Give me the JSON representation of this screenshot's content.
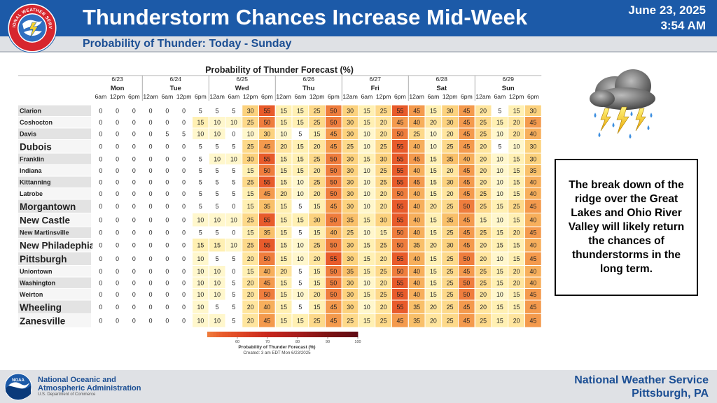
{
  "header": {
    "title": "Thunderstorm Chances Increase Mid-Week",
    "date": "June 23, 2025",
    "time": "3:54 AM",
    "subtitle": "Probability of Thunder: Today - Sunday",
    "logo_text": "NATIONAL WEATHER SERVICE",
    "brand_color": "#1c5aa8"
  },
  "note": {
    "text": "The break down of the ridge over the Great Lakes and Ohio River Valley will likely return the chances of thunderstorms in the long term."
  },
  "footer": {
    "agency_line1": "National Oceanic and",
    "agency_line2": "Atmospheric Administration",
    "department": "U.S. Department of Commerce",
    "office_line1": "National Weather Service",
    "office_line2": "Pittsburgh, PA",
    "noaa_logo_text": "NOAA"
  },
  "icons": {
    "weather": "thunderstorm-cloud-icon",
    "nws": "nws-logo-icon",
    "noaa": "noaa-logo-icon"
  },
  "chart_data": {
    "type": "heatmap",
    "title": "Probability of Thunder Forecast (%)",
    "days": [
      {
        "date": "6/23",
        "day": "Mon",
        "times": [
          "6am",
          "12pm",
          "6pm"
        ]
      },
      {
        "date": "6/24",
        "day": "Tue",
        "times": [
          "12am",
          "6am",
          "12pm",
          "6pm"
        ]
      },
      {
        "date": "6/25",
        "day": "Wed",
        "times": [
          "12am",
          "6am",
          "12pm",
          "6pm"
        ]
      },
      {
        "date": "6/26",
        "day": "Thu",
        "times": [
          "12am",
          "6am",
          "12pm",
          "6pm"
        ]
      },
      {
        "date": "6/27",
        "day": "Fri",
        "times": [
          "12am",
          "6am",
          "12pm",
          "6pm"
        ]
      },
      {
        "date": "6/28",
        "day": "Sat",
        "times": [
          "12am",
          "6am",
          "12pm",
          "6pm"
        ]
      },
      {
        "date": "6/29",
        "day": "Sun",
        "times": [
          "12am",
          "6am",
          "12pm",
          "6pm"
        ]
      }
    ],
    "rows": [
      {
        "name": "Clarion",
        "big": false,
        "values": [
          0,
          0,
          0,
          0,
          0,
          0,
          5,
          5,
          5,
          30,
          55,
          15,
          15,
          25,
          50,
          30,
          15,
          25,
          55,
          45,
          15,
          30,
          45,
          20,
          5,
          15,
          30
        ]
      },
      {
        "name": "Coshocton",
        "big": false,
        "values": [
          0,
          0,
          0,
          0,
          0,
          0,
          15,
          10,
          10,
          25,
          50,
          15,
          15,
          25,
          50,
          30,
          15,
          20,
          45,
          40,
          20,
          30,
          45,
          25,
          15,
          20,
          45
        ]
      },
      {
        "name": "Davis",
        "big": false,
        "values": [
          0,
          0,
          0,
          0,
          5,
          5,
          10,
          10,
          0,
          10,
          30,
          10,
          5,
          15,
          45,
          30,
          10,
          20,
          50,
          25,
          10,
          20,
          45,
          25,
          10,
          20,
          40
        ]
      },
      {
        "name": "Dubois",
        "big": true,
        "values": [
          0,
          0,
          0,
          0,
          0,
          0,
          5,
          5,
          5,
          25,
          45,
          20,
          15,
          20,
          45,
          25,
          10,
          25,
          55,
          40,
          10,
          25,
          45,
          20,
          5,
          10,
          30
        ]
      },
      {
        "name": "Franklin",
        "big": false,
        "values": [
          0,
          0,
          0,
          0,
          0,
          0,
          5,
          10,
          10,
          30,
          55,
          15,
          15,
          25,
          50,
          30,
          15,
          30,
          55,
          45,
          15,
          35,
          40,
          20,
          10,
          15,
          30
        ]
      },
      {
        "name": "Indiana",
        "big": false,
        "values": [
          0,
          0,
          0,
          0,
          0,
          0,
          5,
          5,
          5,
          15,
          50,
          15,
          15,
          20,
          50,
          30,
          10,
          25,
          55,
          40,
          15,
          20,
          45,
          20,
          10,
          15,
          35
        ]
      },
      {
        "name": "Kittanning",
        "big": false,
        "values": [
          0,
          0,
          0,
          0,
          0,
          0,
          5,
          5,
          5,
          25,
          55,
          15,
          10,
          25,
          50,
          30,
          10,
          25,
          55,
          45,
          15,
          30,
          45,
          20,
          10,
          15,
          40
        ]
      },
      {
        "name": "Latrobe",
        "big": false,
        "values": [
          0,
          0,
          0,
          0,
          0,
          0,
          5,
          5,
          5,
          15,
          45,
          20,
          10,
          20,
          50,
          30,
          10,
          20,
          50,
          40,
          15,
          20,
          45,
          25,
          10,
          15,
          40
        ]
      },
      {
        "name": "Morgantown",
        "big": true,
        "values": [
          0,
          0,
          0,
          0,
          0,
          0,
          5,
          5,
          0,
          15,
          35,
          15,
          5,
          15,
          45,
          30,
          10,
          20,
          55,
          40,
          20,
          25,
          50,
          25,
          15,
          25,
          45
        ]
      },
      {
        "name": "New Castle",
        "big": true,
        "values": [
          0,
          0,
          0,
          0,
          0,
          0,
          10,
          10,
          10,
          25,
          55,
          15,
          15,
          30,
          50,
          35,
          15,
          30,
          55,
          40,
          15,
          35,
          45,
          15,
          10,
          15,
          40
        ]
      },
      {
        "name": "New Martinsville",
        "big": false,
        "values": [
          0,
          0,
          0,
          0,
          0,
          0,
          5,
          5,
          0,
          15,
          35,
          15,
          5,
          15,
          40,
          25,
          10,
          15,
          50,
          40,
          15,
          25,
          45,
          25,
          15,
          20,
          45
        ]
      },
      {
        "name": "New Philadephia",
        "big": true,
        "values": [
          0,
          0,
          0,
          0,
          0,
          0,
          15,
          15,
          10,
          25,
          55,
          15,
          10,
          25,
          50,
          30,
          15,
          25,
          50,
          35,
          20,
          30,
          45,
          20,
          15,
          15,
          40
        ]
      },
      {
        "name": "Pittsburgh",
        "big": true,
        "values": [
          0,
          0,
          0,
          0,
          0,
          0,
          10,
          5,
          5,
          20,
          50,
          15,
          10,
          20,
          55,
          30,
          15,
          20,
          55,
          40,
          15,
          25,
          50,
          20,
          10,
          15,
          45
        ]
      },
      {
        "name": "Uniontown",
        "big": false,
        "values": [
          0,
          0,
          0,
          0,
          0,
          0,
          10,
          10,
          0,
          15,
          40,
          20,
          5,
          15,
          50,
          35,
          15,
          25,
          50,
          40,
          15,
          25,
          45,
          25,
          15,
          20,
          40
        ]
      },
      {
        "name": "Washington",
        "big": false,
        "values": [
          0,
          0,
          0,
          0,
          0,
          0,
          10,
          10,
          5,
          20,
          45,
          15,
          5,
          15,
          50,
          30,
          10,
          20,
          55,
          40,
          15,
          25,
          50,
          25,
          15,
          20,
          40
        ]
      },
      {
        "name": "Weirton",
        "big": false,
        "values": [
          0,
          0,
          0,
          0,
          0,
          0,
          10,
          10,
          5,
          20,
          50,
          15,
          10,
          20,
          50,
          30,
          15,
          25,
          55,
          40,
          15,
          25,
          50,
          20,
          10,
          15,
          45
        ]
      },
      {
        "name": "Wheeling",
        "big": true,
        "values": [
          0,
          0,
          0,
          0,
          0,
          0,
          10,
          5,
          5,
          20,
          40,
          15,
          5,
          15,
          45,
          30,
          10,
          20,
          55,
          35,
          20,
          25,
          45,
          20,
          15,
          15,
          45
        ]
      },
      {
        "name": "Zanesville",
        "big": true,
        "values": [
          0,
          0,
          0,
          0,
          0,
          0,
          10,
          10,
          5,
          20,
          45,
          15,
          15,
          25,
          45,
          25,
          15,
          25,
          45,
          35,
          20,
          25,
          45,
          25,
          15,
          20,
          45
        ]
      }
    ],
    "colorscale": {
      "stops": [
        0,
        5,
        10,
        15,
        20,
        25,
        30,
        35,
        40,
        45,
        50,
        55,
        60,
        70,
        80,
        90,
        100
      ],
      "colors": [
        "#ffffff",
        "#ffffff",
        "#fff7cc",
        "#fff0b3",
        "#ffe59e",
        "#fdd98a",
        "#fcd27e",
        "#f9c06a",
        "#f7af5c",
        "#f49a4d",
        "#ef7d3d",
        "#e85b2b",
        "#e04a25",
        "#c8261c",
        "#a61c1c",
        "#7c1212",
        "#5e0a14"
      ]
    },
    "legend": {
      "ticks": [
        "60",
        "70",
        "80",
        "90",
        "100"
      ],
      "title": "Probability of Thunder Forecast (%)",
      "created": "Created: 3 am EDT Mon 6/23/2025"
    }
  }
}
